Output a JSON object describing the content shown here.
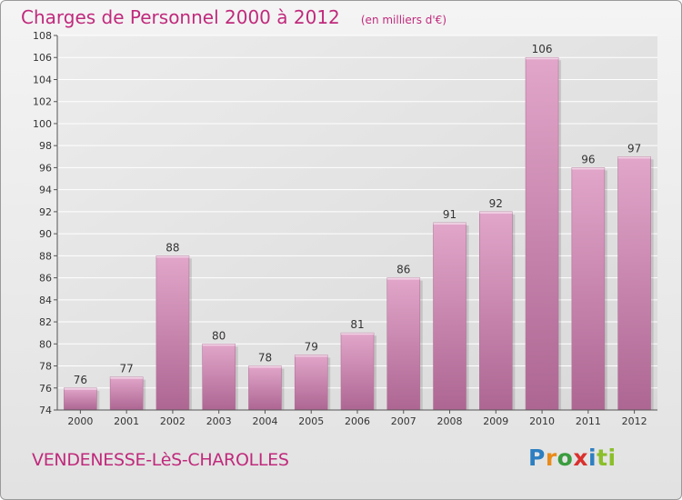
{
  "header": {
    "title": "Charges de Personnel 2000 à 2012",
    "subtitle": "(en milliers d'€)"
  },
  "footer": {
    "commune": "VENDENESSE-LèS-CHAROLLES",
    "logo_text": "Proxiti"
  },
  "colors": {
    "accent": "#c02a7c",
    "bar_top": "#e2a6ca",
    "bar_bottom": "#ad6692",
    "grid": "#ffffff"
  },
  "chart_data": {
    "type": "bar",
    "categories": [
      "2000",
      "2001",
      "2002",
      "2003",
      "2004",
      "2005",
      "2006",
      "2007",
      "2008",
      "2009",
      "2010",
      "2011",
      "2012"
    ],
    "values": [
      76,
      77,
      88,
      80,
      78,
      79,
      81,
      86,
      91,
      92,
      106,
      96,
      97
    ],
    "title": "Charges de Personnel 2000 à 2012",
    "subtitle": "(en milliers d'€)",
    "xlabel": "",
    "ylabel": "",
    "ylim": [
      74,
      108
    ],
    "yticks": [
      74,
      76,
      78,
      80,
      82,
      84,
      86,
      88,
      90,
      92,
      94,
      96,
      98,
      100,
      102,
      104,
      106,
      108
    ],
    "grid": true,
    "data_labels": true
  }
}
